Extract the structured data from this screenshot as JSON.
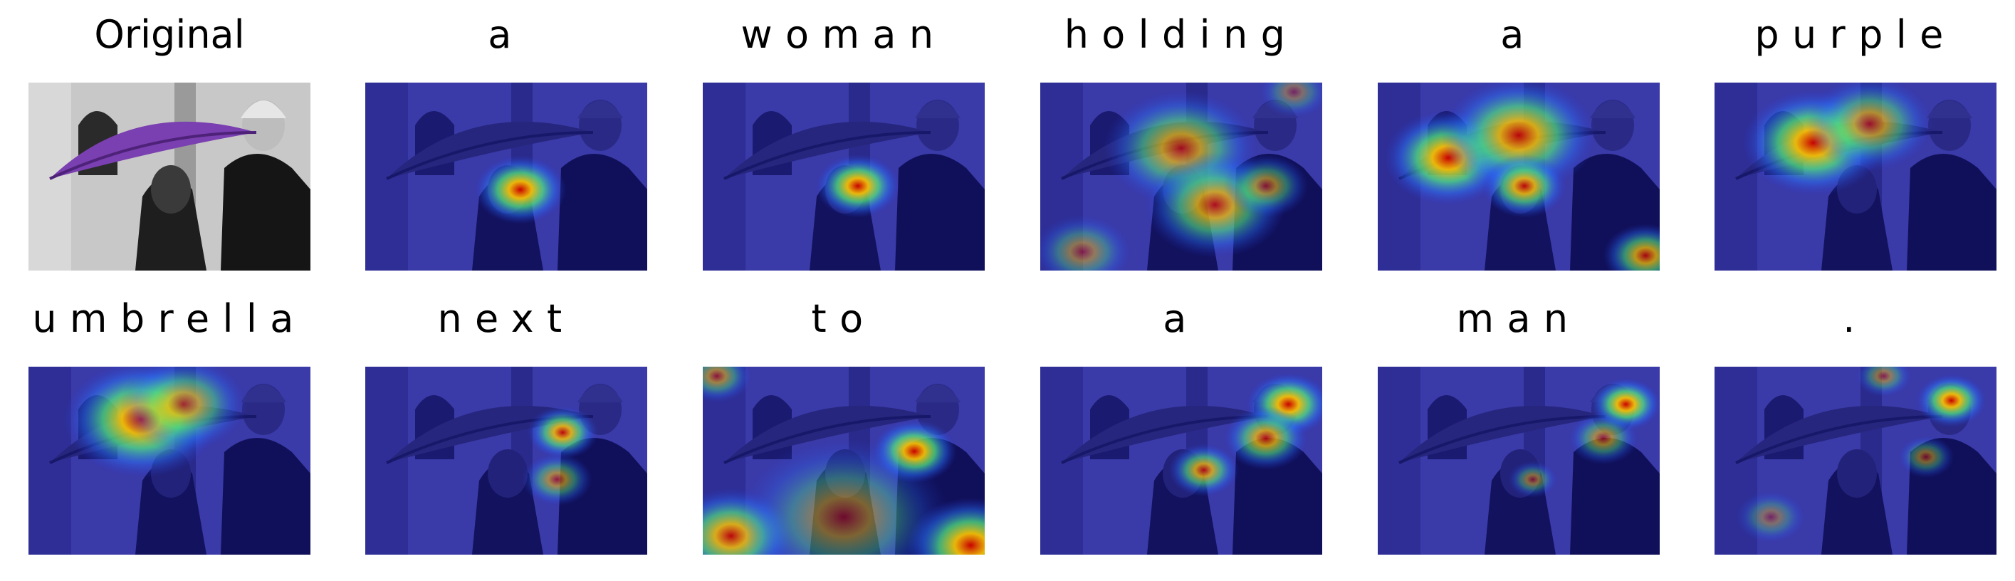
{
  "figure": {
    "panels": [
      {
        "label": "Original",
        "kind": "original",
        "focus": []
      },
      {
        "label": "a",
        "kind": "attention",
        "focus": [
          [
            0.55,
            0.57,
            0.13,
            1.0
          ]
        ]
      },
      {
        "label": "woman",
        "kind": "attention",
        "focus": [
          [
            0.55,
            0.55,
            0.12,
            1.0
          ]
        ]
      },
      {
        "label": "holding",
        "kind": "attention",
        "focus": [
          [
            0.5,
            0.35,
            0.22,
            0.75
          ],
          [
            0.62,
            0.65,
            0.2,
            0.8
          ],
          [
            0.8,
            0.55,
            0.12,
            0.6
          ],
          [
            0.15,
            0.9,
            0.14,
            0.5
          ],
          [
            0.9,
            0.05,
            0.1,
            0.4
          ]
        ]
      },
      {
        "label": "a",
        "kind": "attention",
        "focus": [
          [
            0.25,
            0.4,
            0.18,
            1.0
          ],
          [
            0.5,
            0.28,
            0.22,
            0.9
          ],
          [
            0.52,
            0.55,
            0.12,
            0.9
          ],
          [
            0.95,
            0.92,
            0.12,
            0.8
          ]
        ]
      },
      {
        "label": "purple",
        "kind": "attention",
        "focus": [
          [
            0.35,
            0.32,
            0.2,
            1.0
          ],
          [
            0.55,
            0.22,
            0.18,
            0.7
          ]
        ]
      },
      {
        "label": "umbrella",
        "kind": "attention",
        "focus": [
          [
            0.4,
            0.28,
            0.22,
            1.0
          ],
          [
            0.55,
            0.2,
            0.18,
            0.7
          ]
        ]
      },
      {
        "label": "next",
        "kind": "attention",
        "focus": [
          [
            0.7,
            0.35,
            0.1,
            0.9
          ],
          [
            0.68,
            0.6,
            0.1,
            0.6
          ]
        ]
      },
      {
        "label": "to",
        "kind": "attention",
        "focus": [
          [
            0.75,
            0.45,
            0.12,
            1.0
          ],
          [
            0.1,
            0.9,
            0.18,
            0.9
          ],
          [
            0.95,
            0.95,
            0.18,
            1.0
          ],
          [
            0.5,
            0.8,
            0.3,
            0.5
          ],
          [
            0.05,
            0.05,
            0.1,
            0.6
          ]
        ]
      },
      {
        "label": "a",
        "kind": "attention",
        "focus": [
          [
            0.88,
            0.2,
            0.12,
            1.0
          ],
          [
            0.8,
            0.38,
            0.12,
            0.8
          ],
          [
            0.58,
            0.55,
            0.1,
            0.8
          ]
        ]
      },
      {
        "label": "man",
        "kind": "attention",
        "focus": [
          [
            0.88,
            0.2,
            0.1,
            1.0
          ],
          [
            0.8,
            0.38,
            0.1,
            0.6
          ],
          [
            0.55,
            0.6,
            0.07,
            0.5
          ]
        ]
      },
      {
        "label": ".",
        "kind": "attention",
        "focus": [
          [
            0.84,
            0.18,
            0.1,
            1.0
          ],
          [
            0.6,
            0.05,
            0.08,
            0.5
          ],
          [
            0.75,
            0.48,
            0.08,
            0.5
          ],
          [
            0.2,
            0.8,
            0.1,
            0.4
          ]
        ]
      }
    ]
  }
}
